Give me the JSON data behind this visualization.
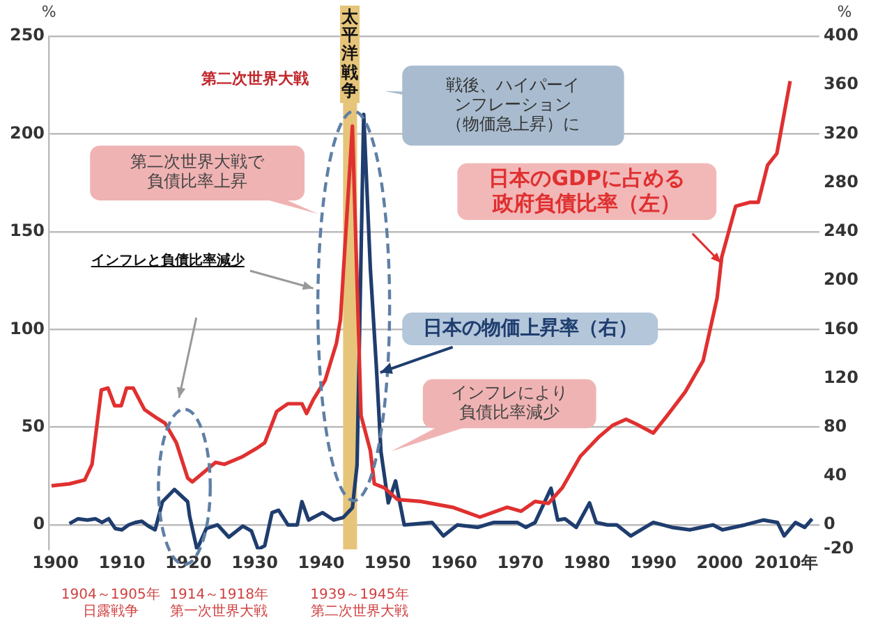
{
  "chart_data": {
    "type": "line",
    "ylabel": "%",
    "y2label": "%",
    "grid": "y",
    "marker": "none",
    "xlim": [
      1899,
      2015
    ],
    "xticks": [
      1900,
      1910,
      1920,
      1930,
      1940,
      1950,
      1960,
      1970,
      1980,
      1990,
      2000,
      {
        "value": 2010,
        "label": "2010年"
      }
    ],
    "ylim": [
      -12.5,
      250
    ],
    "yticks": [
      0,
      50,
      100,
      150,
      200,
      250
    ],
    "y2lim": [
      -20,
      400
    ],
    "y2ticks": [
      -20,
      0,
      40,
      80,
      120,
      160,
      200,
      240,
      280,
      320,
      360,
      400
    ],
    "bands": [
      {
        "axis": "x",
        "from": 1943.3,
        "to": 1945.4,
        "label": "太平洋戦争",
        "color": "#e6c57a"
      }
    ],
    "annotations": [
      "第二次世界大戦",
      "戦後、ハイパーインフレーション（物価急上昇）に",
      "第二次世界大戦で負債比率上昇",
      "インフレと負債比率減少",
      "インフレにより負債比率減少",
      "1904～1905年日露戦争",
      "1914～1918年第一次世界大戦",
      "1939～1945年第二次世界大戦"
    ],
    "series": [
      {
        "name": "日本のGDPに占める政府負債比率（左）",
        "color": "#e03030",
        "x": [
          1899.4,
          1902.1,
          1904.4,
          1905.5,
          1906.9,
          1907.9,
          1908.9,
          1909.9,
          1910.7,
          1911.7,
          1913.4,
          1915.1,
          1916.5,
          1918.2,
          1919.9,
          1920.6,
          1922.7,
          1924.1,
          1925.4,
          1928.2,
          1930.2,
          1931.5,
          1933.3,
          1935,
          1937.1,
          1937.8,
          1938.8,
          1940.6,
          1942.3,
          1942.9,
          1944.7,
          1946,
          1947.4,
          1948,
          1949.5,
          1951.5,
          1955,
          1959.8,
          1963.9,
          1968,
          1970.1,
          1972.2,
          1974.2,
          1976.3,
          1979,
          1981.8,
          1983.9,
          1985.9,
          1987.2,
          1990,
          1992.1,
          1994.8,
          1997.5,
          1999.6,
          2000.3,
          2002.4,
          2004.5,
          2005.8,
          2007.2,
          2008.6,
          2010.6
        ],
        "values": [
          20,
          21,
          23,
          31,
          69,
          70,
          61,
          61,
          70,
          70,
          59,
          55,
          52,
          42,
          24,
          22,
          28,
          32,
          31,
          35,
          39,
          42,
          58,
          62,
          62,
          57,
          64,
          74,
          93,
          105,
          204,
          56,
          38,
          21,
          19,
          13,
          12,
          9,
          4,
          9,
          7,
          12,
          11,
          19,
          35,
          45,
          51,
          54,
          52,
          47,
          56,
          68,
          84,
          116,
          137,
          163,
          165,
          165,
          184,
          190,
          227
        ]
      },
      {
        "name": "日本の物価上昇率（右）",
        "color": "#1f3d6e",
        "axis": "y2",
        "x": [
          1902.1,
          1903.4,
          1904.8,
          1906,
          1907,
          1908,
          1909,
          1910,
          1911,
          1912,
          1913,
          1914,
          1915,
          1916.1,
          1917.9,
          1919.9,
          1920.2,
          1921.3,
          1922.7,
          1924.4,
          1926.1,
          1928.2,
          1929.5,
          1930.5,
          1931.5,
          1932.6,
          1933.6,
          1935,
          1936.4,
          1937.1,
          1938.1,
          1940.2,
          1941.9,
          1943.3,
          1944.7,
          1945.4,
          1946.4,
          1947.4,
          1948.3,
          1949,
          1950.1,
          1951.2,
          1952.5,
          1956.7,
          1958.4,
          1960.5,
          1963.6,
          1966,
          1969.5,
          1970.8,
          1972.2,
          1974.6,
          1975.6,
          1976.7,
          1978.4,
          1980.4,
          1981.4,
          1983.1,
          1984.5,
          1986.6,
          1990,
          1992.8,
          1995.5,
          1999,
          2000.4,
          2003.8,
          2006.6,
          2008.7,
          2009.7,
          2011.4,
          2012.8,
          2013.9
        ],
        "values": [
          1,
          5,
          4,
          5,
          2,
          5,
          -3,
          -4,
          0,
          2,
          3,
          -1,
          -4,
          19,
          29,
          19,
          7,
          -20,
          -3,
          0,
          -10,
          -1,
          -5,
          -20,
          -17,
          10,
          12,
          0,
          0,
          19,
          4,
          10,
          4,
          6,
          14,
          49,
          336,
          210,
          130,
          60,
          18,
          36,
          0,
          2,
          -9,
          0,
          -2,
          2,
          2,
          -2,
          2,
          30,
          4,
          5,
          -2,
          18,
          2,
          0,
          0,
          -9,
          2,
          -2,
          -4,
          0,
          -4,
          0,
          4,
          2,
          -9,
          2,
          -2,
          5
        ]
      }
    ]
  }
}
